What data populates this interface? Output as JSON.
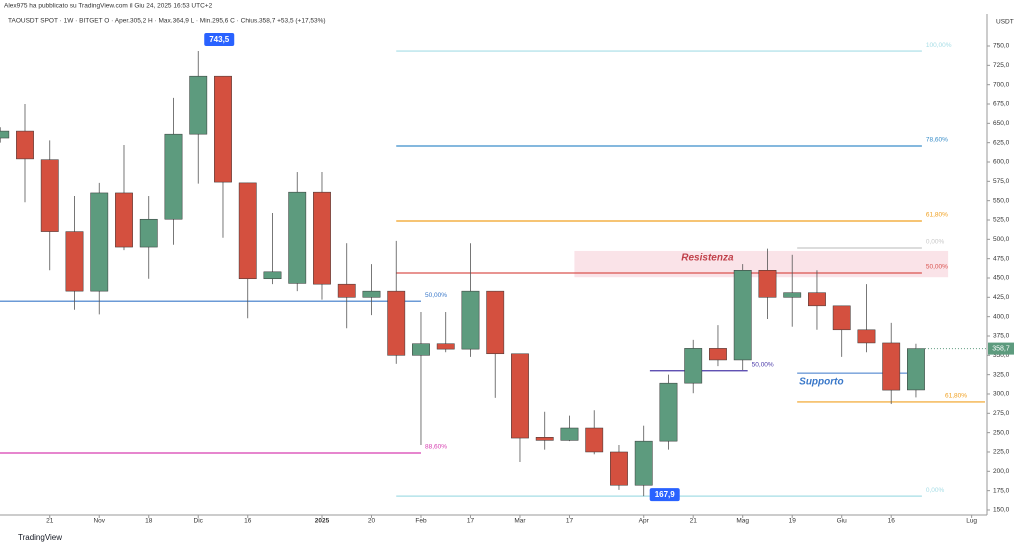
{
  "chart_data": {
    "type": "candlestick",
    "publisher": "Alex975 ha pubblicato su TradingView.com il Giu 24, 2025 16:53 UTC+2",
    "title": "TAOUSDT SPOT · 1W · BITGET  O · Aper.305,2  H · Max.364,9  L · Min.295,6  C · Chius.358,7  +53,5 (+17,53%)",
    "y_axis_label": "USDT",
    "footer": "TradingView",
    "up_color": "#5d9b7e",
    "down_color": "#d4503f",
    "x": [
      -1,
      0,
      1,
      2,
      3,
      4,
      5,
      6,
      7,
      8,
      9,
      10,
      11,
      12,
      13,
      14,
      15,
      16,
      17,
      18,
      19,
      20,
      21,
      22,
      23,
      24,
      25,
      26,
      27,
      28,
      29,
      30,
      31,
      32,
      33,
      34,
      35,
      36
    ],
    "open": [
      631,
      640,
      603,
      510,
      433,
      560,
      490,
      526,
      636,
      711,
      573,
      449,
      443,
      561,
      442,
      425,
      433,
      350,
      365,
      358,
      433,
      352,
      244,
      240,
      256,
      225,
      182,
      239,
      314,
      359,
      344,
      460,
      425,
      431,
      414,
      383,
      366,
      305.2
    ],
    "high": [
      645,
      675,
      628,
      556,
      573,
      622,
      556,
      683,
      743.5,
      711,
      573,
      534,
      587,
      587,
      495,
      468,
      498,
      406,
      406,
      495,
      433,
      352,
      277,
      272,
      279,
      234,
      259,
      325,
      370,
      389,
      468,
      488,
      480,
      460,
      414,
      442,
      392,
      364.9
    ],
    "low": [
      625,
      548,
      460,
      409,
      403,
      486,
      449,
      493,
      572,
      502,
      398,
      442,
      433,
      422,
      385,
      402,
      339,
      234,
      354,
      348,
      295,
      212,
      228,
      239,
      222,
      176,
      167.9,
      228,
      301,
      336,
      331,
      397,
      387,
      383,
      348,
      354,
      287,
      295.6
    ],
    "close": [
      640,
      604,
      510,
      433,
      560,
      490,
      526,
      636,
      711,
      574,
      449,
      458,
      561,
      442,
      425,
      433,
      350,
      365,
      358,
      433,
      352,
      243,
      240,
      256,
      225,
      182,
      239,
      314,
      359,
      344,
      460,
      425,
      431,
      414,
      383,
      366,
      305,
      358.7
    ],
    "xlim": [
      -1.01,
      38.79
    ],
    "xticks": [
      {
        "value": 1,
        "label": "21"
      },
      {
        "value": 3,
        "label": "Nov"
      },
      {
        "value": 5,
        "label": "18"
      },
      {
        "value": 7,
        "label": "Dic"
      },
      {
        "value": 9,
        "label": "16"
      },
      {
        "value": 12,
        "label": "2025"
      },
      {
        "value": 14,
        "label": "20"
      },
      {
        "value": 16,
        "label": "Feb"
      },
      {
        "value": 18,
        "label": "17"
      },
      {
        "value": 20,
        "label": "Mar"
      },
      {
        "value": 22,
        "label": "17"
      },
      {
        "value": 25,
        "label": "Apr"
      },
      {
        "value": 27,
        "label": "21"
      },
      {
        "value": 29,
        "label": "Mag"
      },
      {
        "value": 31,
        "label": "19"
      },
      {
        "value": 33,
        "label": "Giu"
      },
      {
        "value": 35,
        "label": "16"
      },
      {
        "value": 38.25,
        "label": "Lug"
      }
    ],
    "ylim": [
      143.5,
      791.4
    ],
    "yticks": [
      {
        "value": 150,
        "label": "150,0"
      },
      {
        "value": 175,
        "label": "175,0"
      },
      {
        "value": 200,
        "label": "200,0"
      },
      {
        "value": 225,
        "label": "225,0"
      },
      {
        "value": 250,
        "label": "250,0"
      },
      {
        "value": 275,
        "label": "275,0"
      },
      {
        "value": 300,
        "label": "300,0"
      },
      {
        "value": 325,
        "label": "325,0"
      },
      {
        "value": 350,
        "label": "350,0"
      },
      {
        "value": 375,
        "label": "375,0"
      },
      {
        "value": 400,
        "label": "400,0"
      },
      {
        "value": 425,
        "label": "425,0"
      },
      {
        "value": 450,
        "label": "450,0"
      },
      {
        "value": 475,
        "label": "475,0"
      },
      {
        "value": 500,
        "label": "500,0"
      },
      {
        "value": 525,
        "label": "525,0"
      },
      {
        "value": 550,
        "label": "550,0"
      },
      {
        "value": 575,
        "label": "575,0"
      },
      {
        "value": 600,
        "label": "600,0"
      },
      {
        "value": 625,
        "label": "625,0"
      },
      {
        "value": 650,
        "label": "650,0"
      },
      {
        "value": 675,
        "label": "675,0"
      },
      {
        "value": 700,
        "label": "700,0"
      },
      {
        "value": 725,
        "label": "725,0"
      },
      {
        "value": 750,
        "label": "750,0"
      }
    ],
    "levels": [
      {
        "label": "100,00%",
        "value": 743.5,
        "color": "#a6dde6",
        "from": 15,
        "to": 36.24
      },
      {
        "label": "78,60%",
        "value": 620.7,
        "color": "#3a8ec9",
        "from": 15,
        "to": 36.24
      },
      {
        "label": "61,80%",
        "value": 523.7,
        "color": "#f0a020",
        "from": 15,
        "to": 36.24
      },
      {
        "label": "50,00%",
        "value": 456.5,
        "color": "#d9534f",
        "from": 15,
        "to": 36.24
      },
      {
        "label": "0,00%",
        "value": 488.8,
        "color": "#c8c8c8",
        "from": 31.2,
        "to": 36.24
      },
      {
        "label": "0,00%",
        "value": 167.9,
        "color": "#a6dde6",
        "from": 15,
        "to": 36.24
      },
      {
        "label": "50,00%",
        "value": 420,
        "color": "#3a78c9",
        "from": -1.01,
        "to": 16
      },
      {
        "label": "88,60%",
        "value": 223.7,
        "color": "#d63fb0",
        "from": -1.01,
        "to": 16
      },
      {
        "label": "50,00%",
        "value": 330,
        "color": "#4a3aa8",
        "from": 25.25,
        "to": 29.2
      },
      {
        "label": "61,80%",
        "value": 289.7,
        "color": "#f0a020",
        "from": 31.2,
        "to": 38.79
      }
    ],
    "zones": [
      {
        "label": "Resistenza",
        "top": 485,
        "bottom": 451,
        "from": 22.2,
        "to": 37.3,
        "color": "#f8d7de",
        "text_color": "#c0404a"
      },
      {
        "label": "Supporto",
        "top": 327,
        "bottom": 327,
        "from": 31.2,
        "to": 36.24,
        "color": "#3a78c9",
        "text_color": "#3a78c9"
      }
    ],
    "callouts": [
      {
        "label": "743,5",
        "value": 743.5,
        "at": 7
      },
      {
        "label": "167,9",
        "value": 167.9,
        "at": 25
      }
    ],
    "last_price": {
      "label": "358,7",
      "value": 358.7
    }
  }
}
